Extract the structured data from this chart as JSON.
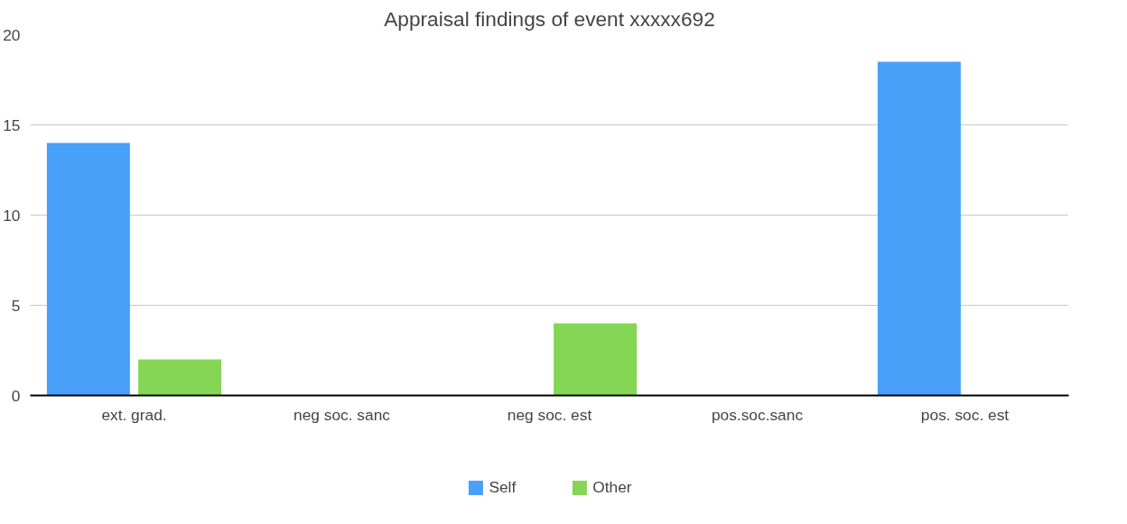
{
  "chart_data": {
    "type": "bar",
    "title": "Appraisal findings of event xxxxx692",
    "categories": [
      "ext. grad.",
      "neg soc. sanc",
      "neg soc. est",
      "pos.soc.sanc",
      "pos. soc. est"
    ],
    "series": [
      {
        "name": "Self",
        "color": "#48a0f8",
        "values": [
          14,
          0,
          0,
          0,
          18.5
        ]
      },
      {
        "name": "Other",
        "color": "#84d654",
        "values": [
          2,
          0,
          4,
          0,
          0
        ]
      }
    ],
    "ylim": [
      0,
      20
    ],
    "yticks": [
      0,
      5,
      10,
      15,
      20
    ],
    "grid": "y",
    "legend": "bottom"
  }
}
